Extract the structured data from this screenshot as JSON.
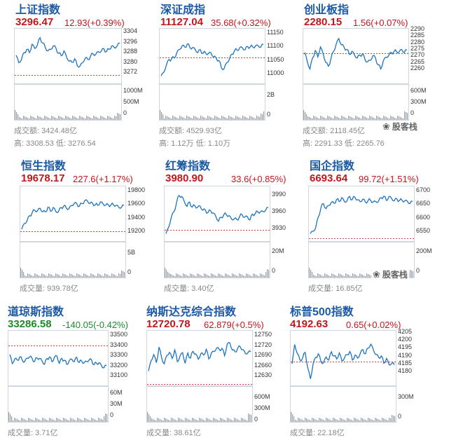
{
  "colors": {
    "up": "#c0171c",
    "down": "#1f8a2b",
    "line": "#1e73be",
    "ref": "#d33b3b",
    "volume": "#9aa0a6",
    "title": "#1a5aa6"
  },
  "watermark": {
    "icon": "wechat-icon",
    "label": "股客栈"
  },
  "panels": [
    {
      "id": "sh",
      "title": "上证指数",
      "price": "3296.47",
      "change": "12.93(+0.39%)",
      "trend": "up",
      "price_ticks": [
        "3304",
        "3296",
        "3288",
        "3280",
        "3272"
      ],
      "volume_ticks": [
        "1000M",
        "500M",
        "0"
      ],
      "footer": "成交额: 3424.48亿",
      "footer2": "高: 3308.53  低: 3276.54",
      "watermark": false
    },
    {
      "id": "sz",
      "title": "深证成指",
      "price": "11127.04",
      "change": "35.68(+0.32%)",
      "trend": "up",
      "price_ticks": [
        "11150",
        "11100",
        "11050",
        "11000"
      ],
      "volume_ticks": [
        "2B",
        "0"
      ],
      "footer": "成交额: 4529.93亿",
      "footer2": "高: 1.12万  低: 1.10万",
      "watermark": false
    },
    {
      "id": "cy",
      "title": "创业板指",
      "price": "2280.15",
      "change": "1.56(+0.07%)",
      "trend": "up",
      "price_ticks": [
        "2290",
        "2285",
        "2280",
        "2275",
        "2270",
        "2265",
        "2260"
      ],
      "volume_ticks": [
        "600M",
        "300M",
        "0"
      ],
      "footer": "成交额: 2118.45亿",
      "footer2": "高: 2291.33  低: 2265.76",
      "watermark": true
    },
    {
      "id": "hs",
      "title": "恒生指数",
      "price": "19678.17",
      "change": "227.6(+1.17%)",
      "trend": "up",
      "price_ticks": [
        "19800",
        "19600",
        "19400",
        "19200"
      ],
      "volume_ticks": [
        "5B",
        "0"
      ],
      "footer": "成交量: 939.78亿",
      "watermark": false
    },
    {
      "id": "hc",
      "title": "红筹指数",
      "price": "3980.90",
      "change": "33.6(+0.85%)",
      "trend": "up",
      "price_ticks": [
        "3990",
        "3960",
        "3930"
      ],
      "volume_ticks": [
        "20M",
        "0"
      ],
      "footer": "成交量: 3.40亿",
      "watermark": false
    },
    {
      "id": "gq",
      "title": "国企指数",
      "price": "6693.64",
      "change": "99.72(+1.51%)",
      "trend": "up",
      "price_ticks": [
        "6700",
        "6650",
        "6600",
        "6550"
      ],
      "volume_ticks": [
        "200M",
        "0"
      ],
      "footer": "成交量: 16.85亿",
      "watermark": true
    },
    {
      "id": "dj",
      "title": "道琼斯指数",
      "price": "33286.58",
      "change": "-140.05(-0.42%)",
      "trend": "down",
      "price_ticks": [
        "33500",
        "33400",
        "33300",
        "33200",
        "33100"
      ],
      "volume_ticks": [
        "60M",
        "30M",
        "0"
      ],
      "footer": "成交量: 3.71亿",
      "watermark": false
    },
    {
      "id": "nq",
      "title": "纳斯达克综合指数",
      "price": "12720.78",
      "change": "62.879(+0.5%)",
      "trend": "up",
      "price_ticks": [
        "12750",
        "12720",
        "12690",
        "12660",
        "12630"
      ],
      "volume_ticks": [
        "600M",
        "300M",
        "0"
      ],
      "footer": "成交量: 38.61亿",
      "watermark": false
    },
    {
      "id": "sp",
      "title": "标普500指数",
      "price": "4192.63",
      "change": "0.65(+0.02%)",
      "trend": "up",
      "price_ticks": [
        "4205",
        "4200",
        "4195",
        "4190",
        "4185",
        "4180"
      ],
      "volume_ticks": [
        "300M",
        "0"
      ],
      "footer": "成交量: 22.18亿",
      "watermark": false
    }
  ]
}
